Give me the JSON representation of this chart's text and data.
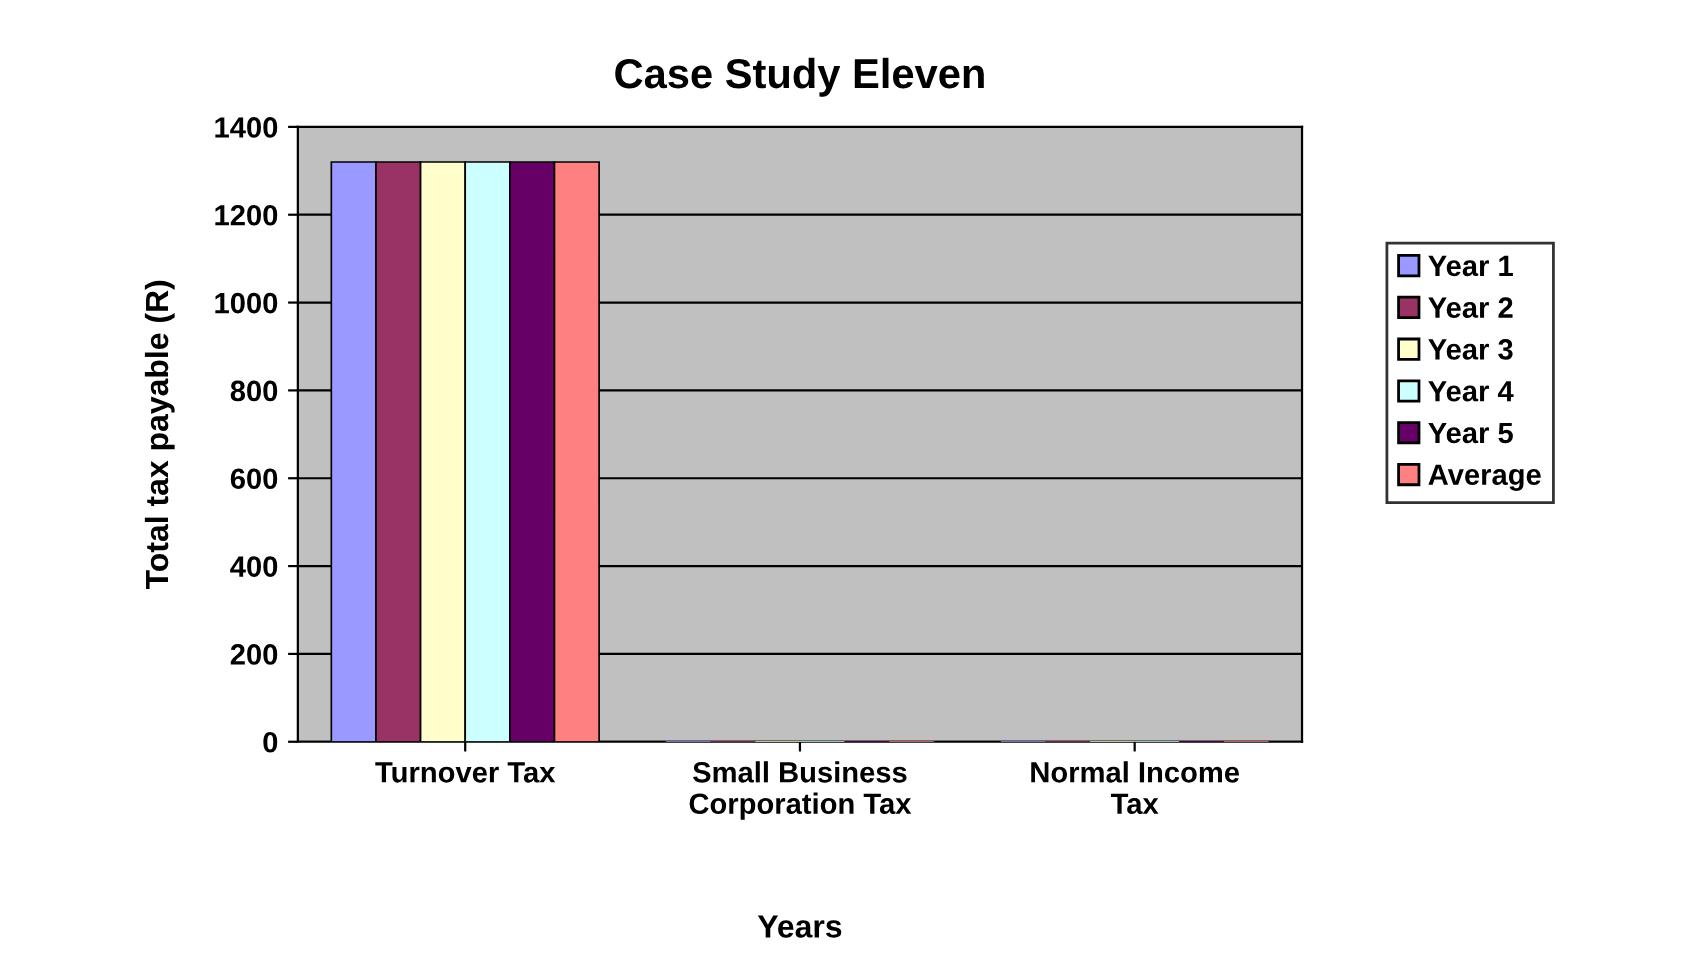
{
  "chart_data": {
    "type": "bar",
    "title": "Case Study Eleven",
    "xlabel": "Years",
    "ylabel": "Total tax payable (R)",
    "categories": [
      "Turnover Tax",
      "Small Business\nCorporation Tax",
      "Normal Income\nTax"
    ],
    "series": [
      {
        "name": "Year 1",
        "color": "#9999ff",
        "values": [
          1320,
          0,
          0
        ]
      },
      {
        "name": "Year 2",
        "color": "#993366",
        "values": [
          1320,
          0,
          0
        ]
      },
      {
        "name": "Year 3",
        "color": "#ffffcc",
        "values": [
          1320,
          0,
          0
        ]
      },
      {
        "name": "Year 4",
        "color": "#ccffff",
        "values": [
          1320,
          0,
          0
        ]
      },
      {
        "name": "Year 5",
        "color": "#660066",
        "values": [
          1320,
          0,
          0
        ]
      },
      {
        "name": "Average",
        "color": "#ff8080",
        "values": [
          1320,
          0,
          0
        ]
      }
    ],
    "ylim": [
      0,
      1400
    ],
    "yticks": [
      0,
      200,
      400,
      600,
      800,
      1000,
      1200,
      1400
    ],
    "grid": "y",
    "legend": "right"
  }
}
